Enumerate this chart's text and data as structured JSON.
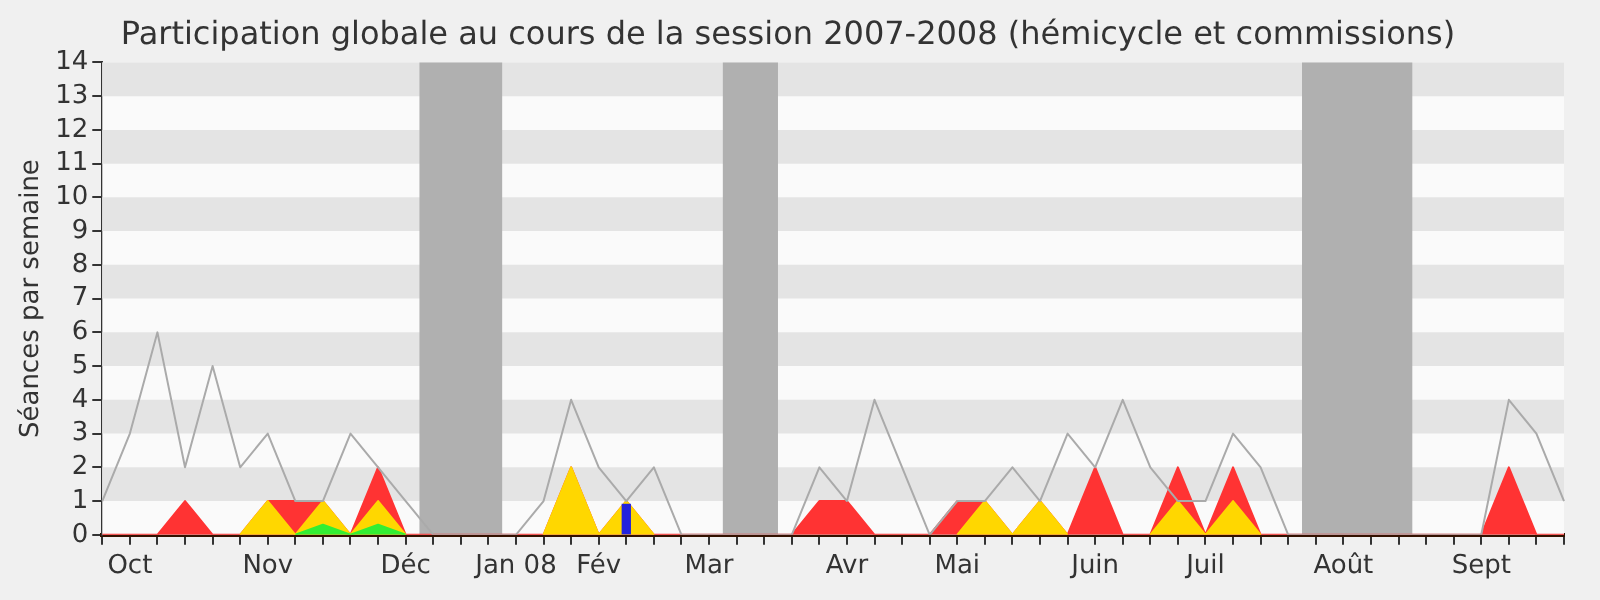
{
  "chart_data": {
    "type": "area",
    "title": "Participation globale au cours de la session 2007-2008 (hémicycle et commissions)",
    "ylabel": "Séances par semaine",
    "categories": [
      null,
      "Oct",
      null,
      null,
      null,
      null,
      "Nov",
      null,
      null,
      null,
      null,
      "Déc",
      null,
      null,
      null,
      "Jan 08",
      null,
      null,
      "Fév",
      null,
      null,
      null,
      "Mar",
      null,
      null,
      null,
      null,
      "Avr",
      null,
      null,
      null,
      "Mai",
      null,
      null,
      null,
      null,
      "Juin",
      null,
      null,
      null,
      "Juil",
      null,
      null,
      null,
      null,
      "Août",
      null,
      null,
      null,
      null,
      "Sept",
      null,
      null,
      null
    ],
    "series": [
      {
        "type": "line",
        "color": "#aaaaaa",
        "values": [
          1,
          3,
          6,
          2,
          5,
          2,
          3,
          1,
          1,
          3,
          2,
          1,
          0,
          0,
          0,
          0,
          1,
          4,
          2,
          1,
          2,
          0,
          0,
          0,
          0,
          0,
          2,
          1,
          4,
          2,
          0,
          1,
          1,
          2,
          1,
          3,
          2,
          4,
          2,
          1,
          1,
          3,
          2,
          0,
          0,
          0,
          0,
          0,
          0,
          0,
          0,
          4,
          3,
          1
        ]
      },
      {
        "type": "bar",
        "color": "#2222dd",
        "values": [
          null,
          null,
          null,
          null,
          null,
          null,
          null,
          null,
          null,
          null,
          null,
          null,
          null,
          null,
          null,
          null,
          null,
          null,
          null,
          0.9,
          null,
          null,
          null,
          null,
          null,
          null,
          null,
          null,
          null,
          null,
          null,
          null,
          null,
          null,
          null,
          null,
          null,
          null,
          null,
          null,
          null,
          null,
          null,
          null,
          null,
          null,
          null,
          null,
          null,
          null,
          null,
          null,
          null,
          null
        ]
      },
      {
        "color": "#33ee33",
        "values": [
          null,
          null,
          null,
          null,
          null,
          null,
          null,
          0,
          0.3,
          0,
          0.3,
          0,
          null,
          null,
          null,
          null,
          null,
          null,
          null,
          null,
          null,
          null,
          null,
          null,
          null,
          null,
          null,
          null,
          null,
          null,
          null,
          null,
          null,
          null,
          null,
          null,
          null,
          null,
          null,
          null,
          null,
          null,
          null,
          null,
          null,
          null,
          null,
          null,
          null,
          null,
          null,
          null,
          null,
          null
        ]
      },
      {
        "color": "#ffd700",
        "values": [
          null,
          null,
          null,
          null,
          null,
          0,
          1,
          0,
          1,
          0,
          1,
          0,
          null,
          null,
          null,
          null,
          0,
          2,
          0,
          1,
          0,
          null,
          null,
          null,
          null,
          null,
          null,
          null,
          null,
          null,
          null,
          0,
          1,
          0,
          1,
          0,
          null,
          null,
          0,
          1,
          0,
          1,
          0,
          null,
          null,
          null,
          null,
          null,
          null,
          null,
          null,
          null,
          null,
          null
        ]
      },
      {
        "color": "#ff3333",
        "values": [
          0,
          0,
          0,
          1,
          0,
          0,
          1,
          1,
          1,
          0,
          2,
          0,
          0,
          0,
          0,
          0,
          0,
          2,
          0,
          1,
          0,
          0,
          0,
          0,
          0,
          0,
          1,
          1,
          0,
          0,
          0,
          1,
          1,
          0,
          1,
          0,
          2,
          0,
          0,
          2,
          0,
          2,
          0,
          0,
          0,
          0,
          0,
          0,
          0,
          0,
          0,
          2,
          0,
          0
        ]
      }
    ],
    "ylim": [
      0,
      14
    ],
    "yticks": [
      0,
      1,
      2,
      3,
      4,
      5,
      6,
      7,
      8,
      9,
      10,
      11,
      12,
      13,
      14
    ],
    "legend": false,
    "marker": "none",
    "line_style": "solid"
  }
}
